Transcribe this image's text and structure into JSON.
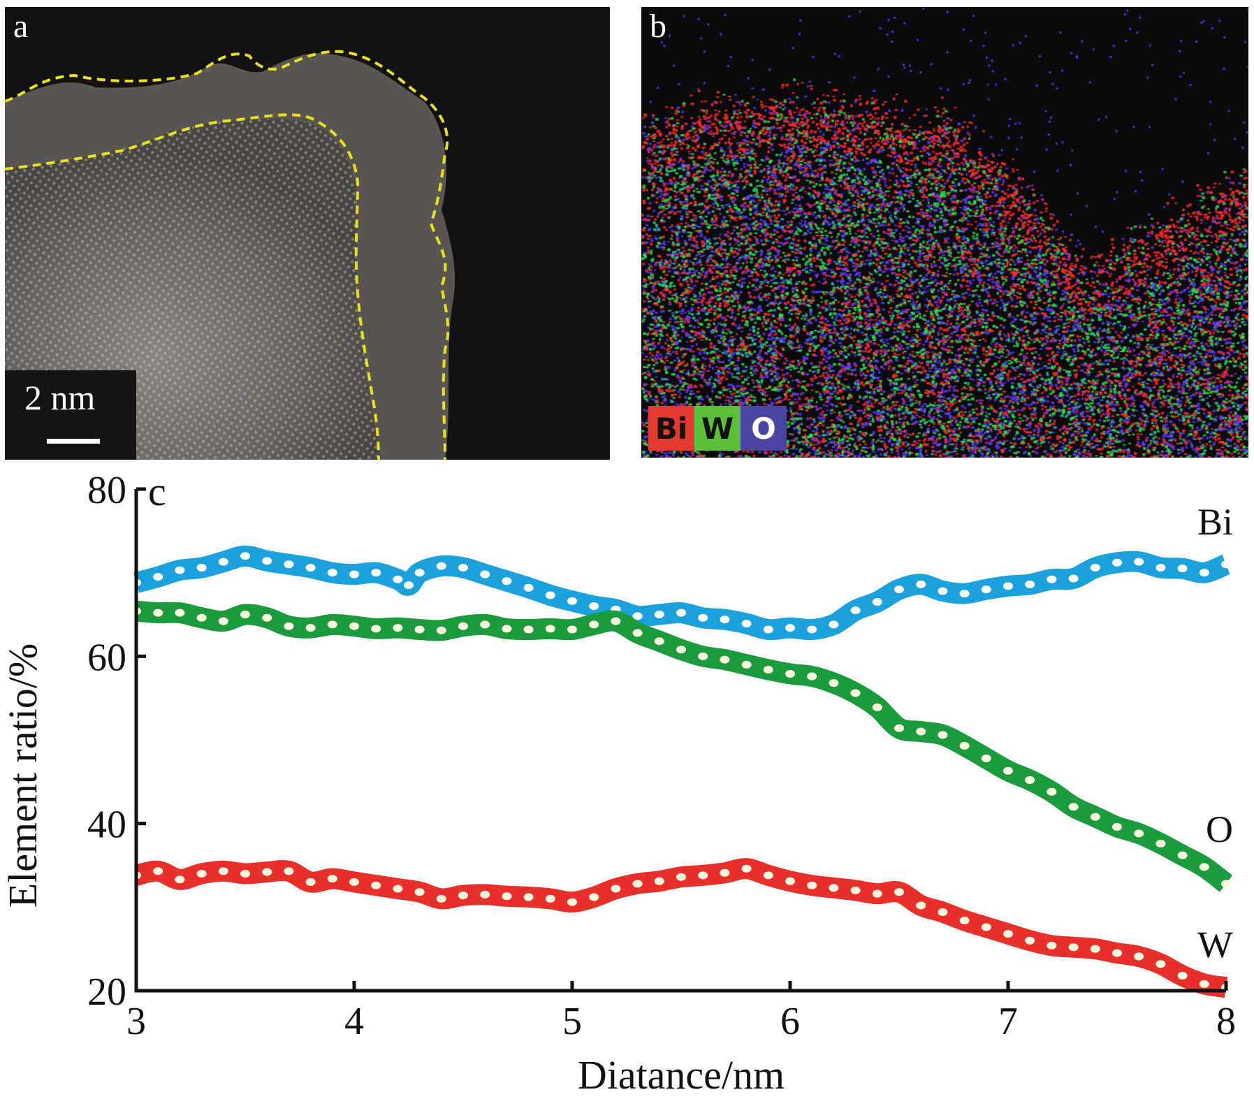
{
  "panels": {
    "a": {
      "letter": "a",
      "scale_bar": "2 nm",
      "boundary_color": "#e6e021"
    },
    "b": {
      "letter": "b",
      "legend": [
        {
          "label": "Bi",
          "bg": "#e23a2e",
          "fg": "#111111",
          "dot": "#ff2d2d"
        },
        {
          "label": "W",
          "bg": "#5cbf3a",
          "fg": "#111111",
          "dot": "#2ee05a"
        },
        {
          "label": "O",
          "bg": "#4a46a0",
          "fg": "#ffffff",
          "dot": "#5a3cff"
        }
      ]
    }
  },
  "chart_data": {
    "type": "line",
    "panel_letter": "c",
    "title": "",
    "xlabel": "Diatance/nm",
    "ylabel": "Element ratio/%",
    "xlim": [
      3,
      8
    ],
    "ylim": [
      20,
      80
    ],
    "xticks": [
      3,
      4,
      5,
      6,
      7,
      8
    ],
    "yticks": [
      20,
      40,
      60,
      80
    ],
    "grid": false,
    "legend": "inline-right",
    "series": [
      {
        "name": "Bi",
        "color": "#1ba1dc",
        "x": [
          3.0,
          3.1,
          3.2,
          3.3,
          3.4,
          3.5,
          3.6,
          3.7,
          3.8,
          3.9,
          4.0,
          4.1,
          4.2,
          4.25,
          4.3,
          4.4,
          4.5,
          4.6,
          4.7,
          4.8,
          4.9,
          5.0,
          5.1,
          5.2,
          5.3,
          5.4,
          5.5,
          5.6,
          5.7,
          5.8,
          5.9,
          6.0,
          6.1,
          6.2,
          6.3,
          6.4,
          6.5,
          6.6,
          6.7,
          6.8,
          6.9,
          7.0,
          7.1,
          7.2,
          7.3,
          7.4,
          7.5,
          7.6,
          7.7,
          7.8,
          7.9,
          8.0
        ],
        "values": [
          68.8,
          69.5,
          70.3,
          70.6,
          71.3,
          72.0,
          71.4,
          71.0,
          70.6,
          70.0,
          69.8,
          70.0,
          69.2,
          68.5,
          70.0,
          70.8,
          70.6,
          69.8,
          69.0,
          68.2,
          67.3,
          66.6,
          66.0,
          65.6,
          64.8,
          65.0,
          65.2,
          64.6,
          64.4,
          63.9,
          63.2,
          63.4,
          63.2,
          63.8,
          65.5,
          66.5,
          68.0,
          68.6,
          67.8,
          67.5,
          68.0,
          68.4,
          68.6,
          69.2,
          69.3,
          70.6,
          71.2,
          71.3,
          70.6,
          70.5,
          70.0,
          71.0
        ]
      },
      {
        "name": "O",
        "color": "#1c9a3e",
        "x": [
          3.0,
          3.1,
          3.2,
          3.3,
          3.4,
          3.5,
          3.6,
          3.7,
          3.8,
          3.9,
          4.0,
          4.1,
          4.2,
          4.3,
          4.4,
          4.5,
          4.6,
          4.7,
          4.8,
          4.9,
          5.0,
          5.1,
          5.2,
          5.3,
          5.4,
          5.5,
          5.6,
          5.7,
          5.8,
          5.9,
          6.0,
          6.1,
          6.2,
          6.3,
          6.4,
          6.5,
          6.6,
          6.7,
          6.8,
          6.9,
          7.0,
          7.1,
          7.2,
          7.3,
          7.4,
          7.5,
          7.6,
          7.7,
          7.8,
          7.9,
          8.0
        ],
        "values": [
          65.4,
          65.2,
          65.2,
          64.6,
          64.2,
          65.0,
          64.6,
          63.6,
          63.4,
          63.8,
          63.6,
          63.3,
          63.4,
          63.2,
          63.1,
          63.6,
          63.8,
          63.3,
          63.2,
          63.3,
          63.2,
          63.8,
          64.2,
          62.8,
          61.8,
          60.8,
          60.0,
          59.6,
          59.0,
          58.4,
          57.9,
          57.6,
          56.8,
          55.6,
          53.9,
          51.4,
          51.0,
          50.6,
          49.3,
          47.8,
          46.3,
          45.2,
          43.8,
          42.0,
          40.8,
          39.6,
          38.8,
          37.6,
          36.2,
          34.8,
          32.8
        ]
      },
      {
        "name": "W",
        "color": "#e8302a",
        "x": [
          3.0,
          3.1,
          3.2,
          3.3,
          3.4,
          3.5,
          3.6,
          3.7,
          3.8,
          3.9,
          4.0,
          4.1,
          4.2,
          4.3,
          4.4,
          4.5,
          4.6,
          4.7,
          4.8,
          4.9,
          5.0,
          5.1,
          5.2,
          5.3,
          5.4,
          5.5,
          5.6,
          5.7,
          5.8,
          5.9,
          6.0,
          6.1,
          6.2,
          6.3,
          6.4,
          6.5,
          6.6,
          6.7,
          6.8,
          6.9,
          7.0,
          7.1,
          7.2,
          7.3,
          7.4,
          7.5,
          7.6,
          7.7,
          7.8,
          7.9,
          8.0
        ],
        "values": [
          33.8,
          34.3,
          33.3,
          34.0,
          34.3,
          34.0,
          34.2,
          34.3,
          33.0,
          33.4,
          33.0,
          32.6,
          32.2,
          31.8,
          31.0,
          31.4,
          31.5,
          31.3,
          31.2,
          31.0,
          30.6,
          31.2,
          32.2,
          32.8,
          33.1,
          33.6,
          33.8,
          34.1,
          34.6,
          33.8,
          33.1,
          32.6,
          32.3,
          32.0,
          31.6,
          31.8,
          30.2,
          29.4,
          28.4,
          27.6,
          26.8,
          26.0,
          25.4,
          25.2,
          25.0,
          24.5,
          24.1,
          23.2,
          21.8,
          20.8,
          20.4
        ]
      }
    ]
  }
}
